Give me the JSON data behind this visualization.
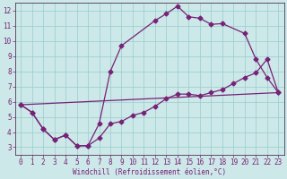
{
  "xlabel": "Windchill (Refroidissement éolien,°C)",
  "bg_color": "#cce8e8",
  "grid_color": "#99cccc",
  "line_color": "#772277",
  "spine_color": "#553355",
  "xlim": [
    -0.5,
    23.5
  ],
  "ylim": [
    2.5,
    12.5
  ],
  "xticks": [
    0,
    1,
    2,
    3,
    4,
    5,
    6,
    7,
    8,
    9,
    10,
    11,
    12,
    13,
    14,
    15,
    16,
    17,
    18,
    19,
    20,
    21,
    22,
    23
  ],
  "yticks": [
    3,
    4,
    5,
    6,
    7,
    8,
    9,
    10,
    11,
    12
  ],
  "line1_x": [
    0,
    1,
    2,
    3,
    4,
    5,
    6,
    7,
    8,
    9,
    12,
    13,
    14,
    15,
    16,
    17,
    18,
    20,
    21,
    22,
    23
  ],
  "line1_y": [
    5.8,
    5.3,
    4.2,
    3.5,
    3.8,
    3.1,
    3.1,
    4.55,
    8.0,
    9.7,
    11.35,
    11.8,
    12.3,
    11.6,
    11.5,
    11.1,
    11.15,
    10.5,
    8.8,
    7.6,
    6.6
  ],
  "line2_x": [
    0,
    1,
    2,
    3,
    4,
    5,
    6,
    7,
    8,
    9,
    10,
    11,
    12,
    13,
    14,
    15,
    16,
    17,
    18,
    19,
    20,
    21,
    22,
    23
  ],
  "line2_y": [
    5.8,
    5.3,
    4.2,
    3.5,
    3.8,
    3.1,
    3.1,
    3.6,
    4.55,
    4.7,
    5.1,
    5.3,
    5.7,
    6.2,
    6.5,
    6.5,
    6.4,
    6.6,
    6.8,
    7.2,
    7.6,
    7.9,
    8.8,
    6.6
  ],
  "line3_x": [
    0,
    23
  ],
  "line3_y": [
    5.8,
    6.6
  ],
  "markersize": 2.5,
  "linewidth": 0.9,
  "tick_fontsize": 5.5,
  "label_fontsize": 5.5
}
